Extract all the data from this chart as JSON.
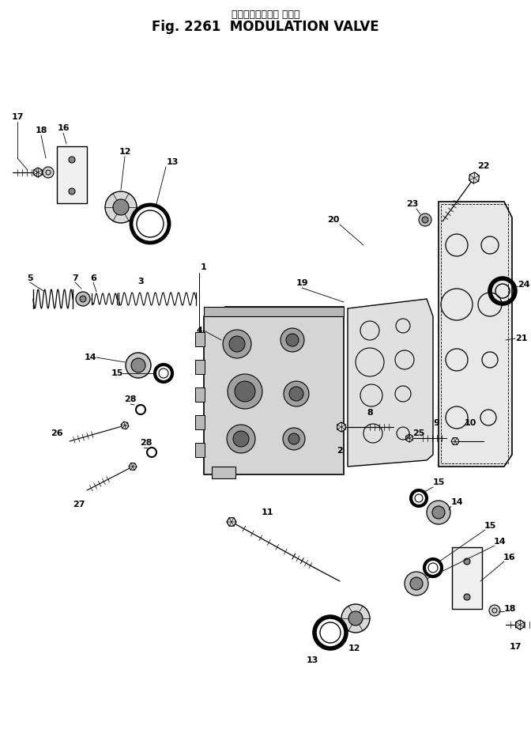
{
  "title_japanese": "モジュレーション バルブ",
  "title_english": "Fig. 2261  MODULATION VALVE",
  "bg_color": "#ffffff",
  "lc": "#000000",
  "fig_width": 6.72,
  "fig_height": 9.32,
  "dpi": 100
}
